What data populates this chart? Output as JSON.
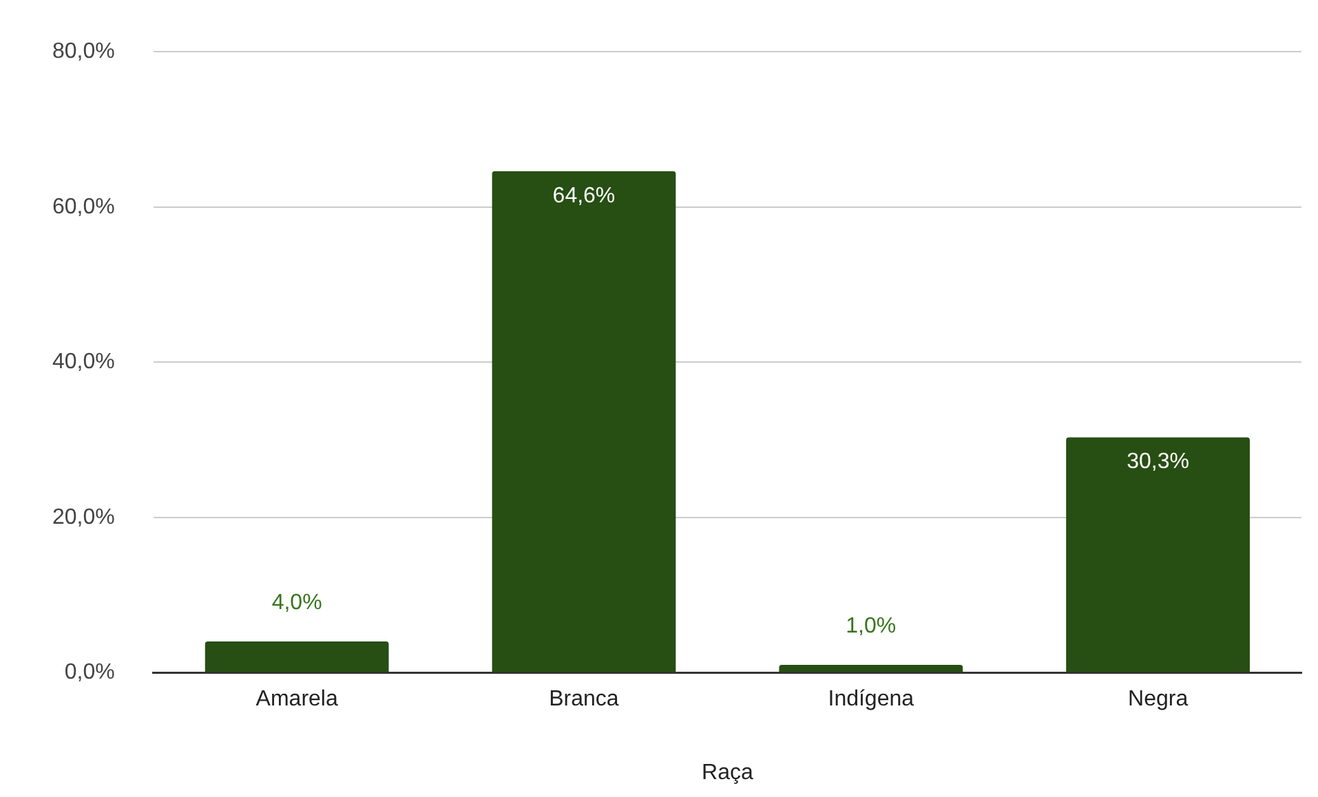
{
  "chart_data": {
    "type": "bar",
    "xlabel": "Raça",
    "categories": [
      "Amarela",
      "Branca",
      "Indígena",
      "Negra"
    ],
    "values": [
      4.0,
      64.6,
      1.0,
      30.3
    ],
    "value_labels": [
      "4,0%",
      "64,6%",
      "1,0%",
      "30,3%"
    ],
    "color": "#274e13",
    "ylim": [
      0,
      80
    ],
    "yticks": [
      {
        "value": 0,
        "label": "0,0%"
      },
      {
        "value": 20,
        "label": "20,0%"
      },
      {
        "value": 40,
        "label": "40,0%"
      },
      {
        "value": 60,
        "label": "60,0%"
      },
      {
        "value": 80,
        "label": "80,0%"
      }
    ],
    "grid": "y",
    "legend": false
  }
}
